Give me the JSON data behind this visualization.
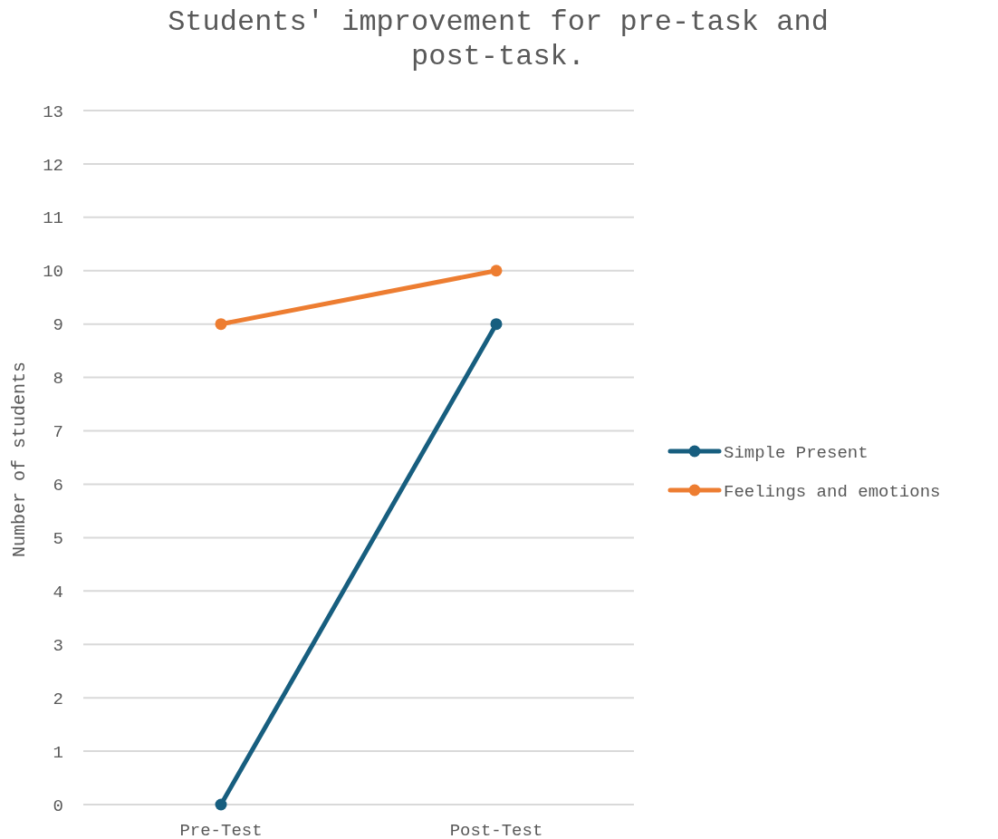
{
  "chart_data": {
    "type": "line",
    "title": "Students' improvement for pre-task and post-task.",
    "ylabel": "Number of students",
    "categories": [
      "Pre-Test",
      "Post-Test"
    ],
    "series": [
      {
        "name": "Simple Present",
        "color": "#175e7f",
        "values": [
          0,
          9
        ]
      },
      {
        "name": "Feelings and emotions",
        "color": "#ed7d31",
        "values": [
          9,
          10
        ]
      }
    ],
    "ylim": [
      0,
      13
    ],
    "yticks": [
      0,
      1,
      2,
      3,
      4,
      5,
      6,
      7,
      8,
      9,
      10,
      11,
      12,
      13
    ],
    "grid": "y",
    "legend": "right",
    "marker": "circle",
    "line_style": "solid"
  }
}
